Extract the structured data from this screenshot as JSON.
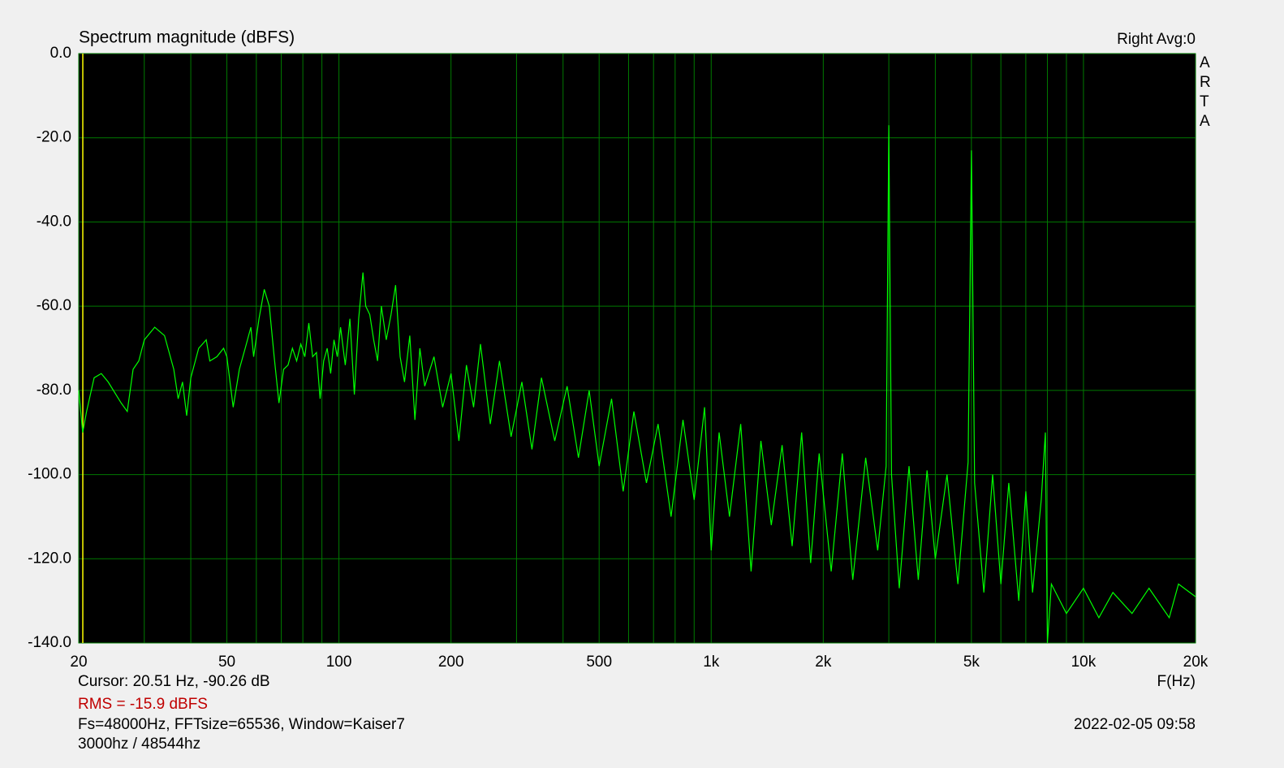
{
  "chart_data": {
    "type": "line",
    "title": "Spectrum magnitude (dBFS)",
    "channel_info": "Right  Avg:0",
    "brand": "ARTA",
    "xlabel": "F(Hz)",
    "cursor_text": "Cursor: 20.51 Hz, -90.26 dB",
    "cursor_x": 20.51,
    "rms_text": "RMS =  -15.9 dBFS",
    "settings_text": "Fs=48000Hz, FFTsize=65536, Window=Kaiser7",
    "timestamp": "2022-02-05  09:58",
    "note": "3000hz / 48544hz",
    "log_x": true,
    "grid": true,
    "color": "#00ff00",
    "xlim": [
      20,
      20000
    ],
    "ylim": [
      -140,
      0
    ],
    "xticks": [
      20,
      50,
      100,
      200,
      500,
      {
        "value": 1000,
        "label": "1k"
      },
      {
        "value": 2000,
        "label": "2k"
      },
      {
        "value": 5000,
        "label": "5k"
      },
      {
        "value": 10000,
        "label": "10k"
      },
      {
        "value": 20000,
        "label": "20k"
      }
    ],
    "xgrid": [
      30,
      40,
      60,
      70,
      80,
      90,
      300,
      400,
      600,
      700,
      800,
      900,
      3000,
      4000,
      6000,
      7000,
      8000,
      9000
    ],
    "yticks": [
      {
        "value": 0,
        "label": "0.0"
      },
      {
        "value": -20,
        "label": "-20.0"
      },
      {
        "value": -40,
        "label": "-40.0"
      },
      {
        "value": -60,
        "label": "-60.0"
      },
      {
        "value": -80,
        "label": "-80.0"
      },
      {
        "value": -100,
        "label": "-100.0"
      },
      {
        "value": -120,
        "label": "-120.0"
      },
      {
        "value": -140,
        "label": "-140.0"
      }
    ],
    "x": [
      20,
      20.5,
      21,
      22,
      23,
      24,
      26,
      27,
      28,
      29,
      30,
      32,
      34,
      36,
      37,
      38,
      39,
      40,
      42,
      44,
      45,
      47,
      49,
      50,
      52,
      54,
      56,
      58,
      59,
      61,
      63,
      65,
      67,
      69,
      71,
      73,
      75,
      77,
      79,
      81,
      83,
      85,
      87,
      89,
      91,
      93,
      95,
      97,
      99,
      101,
      104,
      107,
      110,
      113,
      116,
      118,
      121,
      124,
      127,
      130,
      134,
      138,
      142,
      146,
      150,
      155,
      160,
      165,
      170,
      180,
      190,
      200,
      210,
      220,
      230,
      240,
      255,
      270,
      290,
      310,
      330,
      350,
      380,
      410,
      440,
      470,
      500,
      540,
      580,
      620,
      670,
      720,
      780,
      840,
      900,
      960,
      1000,
      1050,
      1120,
      1200,
      1280,
      1360,
      1450,
      1550,
      1650,
      1750,
      1850,
      1950,
      2100,
      2250,
      2400,
      2600,
      2800,
      2950,
      3000,
      3050,
      3200,
      3400,
      3600,
      3800,
      4000,
      4300,
      4600,
      4900,
      5000,
      5100,
      5400,
      5700,
      6000,
      6300,
      6700,
      7000,
      7300,
      7700,
      7900,
      8000,
      8200,
      9000,
      10000,
      11000,
      12000,
      13500,
      15000,
      17000,
      18000,
      20000
    ],
    "values": [
      -80,
      -90,
      -85,
      -77,
      -76,
      -78,
      -83,
      -85,
      -75,
      -73,
      -68,
      -65,
      -67,
      -75,
      -82,
      -78,
      -86,
      -77,
      -70,
      -68,
      -73,
      -72,
      -70,
      -72,
      -84,
      -75,
      -70,
      -65,
      -72,
      -63,
      -56,
      -60,
      -72,
      -83,
      -75,
      -74,
      -70,
      -73,
      -69,
      -72,
      -64,
      -72,
      -71,
      -82,
      -73,
      -70,
      -76,
      -68,
      -72,
      -65,
      -74,
      -63,
      -81,
      -63,
      -52,
      -60,
      -62,
      -68,
      -73,
      -60,
      -68,
      -62,
      -55,
      -72,
      -78,
      -67,
      -87,
      -70,
      -79,
      -72,
      -84,
      -76,
      -92,
      -74,
      -84,
      -69,
      -88,
      -73,
      -91,
      -78,
      -94,
      -77,
      -92,
      -79,
      -96,
      -80,
      -98,
      -82,
      -104,
      -85,
      -102,
      -88,
      -110,
      -87,
      -106,
      -84,
      -118,
      -90,
      -110,
      -88,
      -123,
      -92,
      -112,
      -93,
      -117,
      -90,
      -121,
      -95,
      -123,
      -95,
      -125,
      -96,
      -118,
      -98,
      -17,
      -100,
      -127,
      -98,
      -125,
      -99,
      -120,
      -100,
      -126,
      -97,
      -23,
      -102,
      -128,
      -100,
      -126,
      -102,
      -130,
      -104,
      -128,
      -106,
      -90,
      -140,
      -126,
      -133,
      -127,
      -134,
      -128,
      -133,
      -127,
      -134,
      -126,
      -129
    ]
  }
}
